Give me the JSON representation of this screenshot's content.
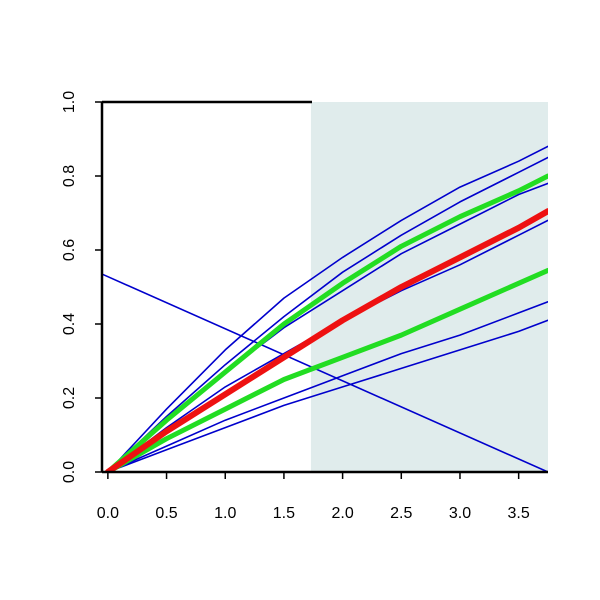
{
  "chart_data": {
    "type": "line",
    "title": "",
    "xlabel": "",
    "ylabel": "",
    "xlim": [
      -0.05,
      3.75
    ],
    "ylim": [
      0.0,
      1.0
    ],
    "grid": false,
    "legend": "none",
    "shaded_region": {
      "x_start": 1.73,
      "x_end": 3.75,
      "color": "#e0ecec"
    },
    "x_ticks": [
      {
        "value": 0.0,
        "label": "0.0"
      },
      {
        "value": 0.5,
        "label": "0.5"
      },
      {
        "value": 1.0,
        "label": "1.0"
      },
      {
        "value": 1.5,
        "label": "1.5"
      },
      {
        "value": 2.0,
        "label": "2.0"
      },
      {
        "value": 2.5,
        "label": "2.5"
      },
      {
        "value": 3.0,
        "label": "3.0"
      },
      {
        "value": 3.5,
        "label": "3.5"
      }
    ],
    "y_ticks": [
      {
        "value": 0.0,
        "label": "0.0"
      },
      {
        "value": 0.2,
        "label": "0.2"
      },
      {
        "value": 0.4,
        "label": "0.4"
      },
      {
        "value": 0.6,
        "label": "0.6"
      },
      {
        "value": 0.8,
        "label": "0.8"
      },
      {
        "value": 1.0,
        "label": "1.0"
      }
    ],
    "series": [
      {
        "color": "#0000cc",
        "width": 1.6,
        "x": [
          0,
          0.5,
          1,
          1.5,
          2,
          2.5,
          3,
          3.5,
          3.75
        ],
        "y": [
          0,
          0.17,
          0.33,
          0.47,
          0.58,
          0.68,
          0.77,
          0.84,
          0.88
        ]
      },
      {
        "color": "#0000cc",
        "width": 1.6,
        "x": [
          0,
          0.5,
          1,
          1.5,
          2,
          2.5,
          3,
          3.5,
          3.75
        ],
        "y": [
          0,
          0.15,
          0.29,
          0.42,
          0.54,
          0.64,
          0.73,
          0.81,
          0.85
        ]
      },
      {
        "color": "#0000cc",
        "width": 1.6,
        "x": [
          0,
          0.5,
          1,
          1.5,
          2,
          2.5,
          3,
          3.5,
          3.75
        ],
        "y": [
          0,
          0.14,
          0.27,
          0.39,
          0.49,
          0.59,
          0.67,
          0.75,
          0.78
        ]
      },
      {
        "color": "#0000cc",
        "width": 1.6,
        "x": [
          0,
          0.5,
          1,
          1.5,
          2,
          2.5,
          3,
          3.5,
          3.75
        ],
        "y": [
          0,
          0.12,
          0.23,
          0.32,
          0.41,
          0.49,
          0.56,
          0.64,
          0.68
        ]
      },
      {
        "color": "#0000cc",
        "width": 1.6,
        "x": [
          0,
          0.5,
          1,
          1.5,
          2,
          2.5,
          3,
          3.5,
          3.75
        ],
        "y": [
          0,
          0.07,
          0.14,
          0.2,
          0.26,
          0.32,
          0.37,
          0.43,
          0.46
        ]
      },
      {
        "color": "#0000cc",
        "width": 1.6,
        "x": [
          0,
          0.5,
          1,
          1.5,
          2,
          2.5,
          3,
          3.5,
          3.75
        ],
        "y": [
          0,
          0.06,
          0.12,
          0.18,
          0.23,
          0.28,
          0.33,
          0.38,
          0.41
        ]
      },
      {
        "color": "#0000cc",
        "width": 1.6,
        "x": [
          -0.05,
          3.75
        ],
        "y": [
          0.535,
          0.0
        ]
      },
      {
        "color": "#22dd22",
        "width": 5,
        "x": [
          0,
          0.5,
          1,
          1.5,
          2,
          2.5,
          3,
          3.5,
          3.75
        ],
        "y": [
          0,
          0.14,
          0.27,
          0.4,
          0.51,
          0.61,
          0.69,
          0.76,
          0.8
        ]
      },
      {
        "color": "#22dd22",
        "width": 5,
        "x": [
          0,
          0.5,
          1,
          1.5,
          1.75,
          2,
          2.5,
          3,
          3.5,
          3.75
        ],
        "y": [
          0,
          0.09,
          0.17,
          0.25,
          0.28,
          0.31,
          0.37,
          0.44,
          0.51,
          0.545
        ]
      },
      {
        "color": "#ee1111",
        "width": 6,
        "x": [
          0,
          0.5,
          1,
          1.5,
          2,
          2.5,
          3,
          3.5,
          3.75
        ],
        "y": [
          0,
          0.11,
          0.21,
          0.31,
          0.41,
          0.5,
          0.58,
          0.66,
          0.705
        ]
      }
    ]
  }
}
